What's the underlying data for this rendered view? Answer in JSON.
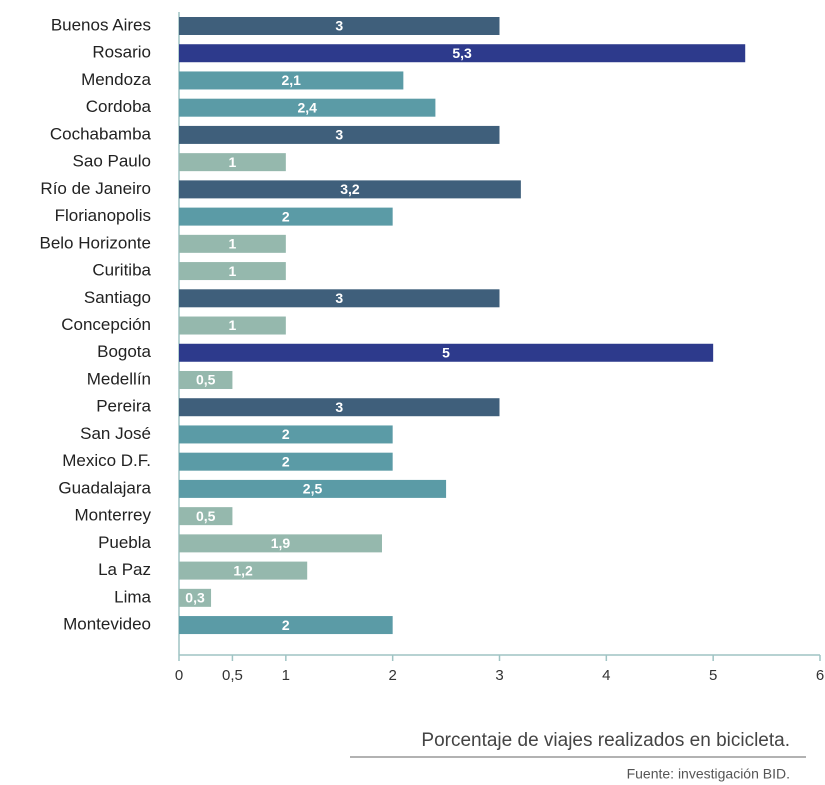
{
  "chart_data": {
    "type": "bar",
    "orientation": "horizontal",
    "categories": [
      "Buenos Aires",
      "Rosario",
      "Mendoza",
      "Cordoba",
      "Cochabamba",
      "Sao Paulo",
      "Río de Janeiro",
      "Florianopolis",
      "Belo Horizonte",
      "Curitiba",
      "Santiago",
      "Concepción",
      "Bogota",
      "Medellín",
      "Pereira",
      "San José",
      "Mexico D.F.",
      "Guadalajara",
      "Monterrey",
      "Puebla",
      "La Paz",
      "Lima",
      "Montevideo"
    ],
    "values": [
      3,
      5.3,
      2.1,
      2.4,
      3,
      1,
      3.2,
      2,
      1,
      1,
      3,
      1,
      5,
      0.5,
      3,
      2,
      2,
      2.5,
      0.5,
      1.9,
      1.2,
      0.3,
      2
    ],
    "value_labels": [
      "3",
      "5,3",
      "2,1",
      "2,4",
      "3",
      "1",
      "3,2",
      "2",
      "1",
      "1",
      "3",
      "1",
      "5",
      "0,5",
      "3",
      "2",
      "2",
      "2,5",
      "0,5",
      "1,9",
      "1,2",
      "0,3",
      "2"
    ],
    "colors": [
      "#3f5f7b",
      "#2d3a8c",
      "#5b9ba6",
      "#5b9ba6",
      "#3f5f7b",
      "#95b8ad",
      "#3f5f7b",
      "#5b9ba6",
      "#95b8ad",
      "#95b8ad",
      "#3f5f7b",
      "#95b8ad",
      "#2d3a8c",
      "#95b8ad",
      "#3f5f7b",
      "#5b9ba6",
      "#5b9ba6",
      "#5b9ba6",
      "#95b8ad",
      "#95b8ad",
      "#95b8ad",
      "#95b8ad",
      "#5b9ba6"
    ],
    "xlim": [
      0,
      6
    ],
    "xticks": [
      0,
      {
        "value": 0.5,
        "label": "0,5"
      },
      1,
      2,
      3,
      4,
      5,
      6
    ],
    "caption": "Porcentaje de viajes realizados en bicicleta.",
    "source": "Fuente: investigación BID."
  }
}
